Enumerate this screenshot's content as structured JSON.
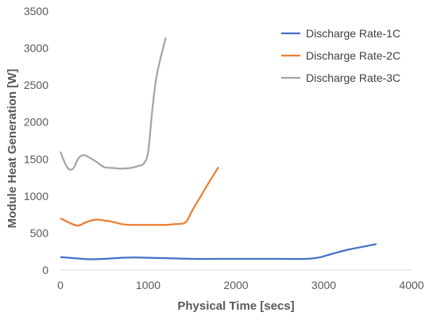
{
  "chart_data": {
    "type": "line",
    "xlabel": "Physical Time [secs]",
    "ylabel": "Module Heat Generation [W]",
    "xlim": [
      0,
      4000
    ],
    "ylim": [
      0,
      3500
    ],
    "x_ticks": [
      0,
      1000,
      2000,
      3000,
      4000
    ],
    "y_ticks": [
      0,
      500,
      1000,
      1500,
      2000,
      2500,
      3000,
      3500
    ],
    "grid": false,
    "legend_position": "top-right",
    "series": [
      {
        "name": "Discharge Rate-1C",
        "color": "#4472C4",
        "x": [
          0,
          150,
          350,
          500,
          700,
          850,
          1000,
          1200,
          1500,
          2000,
          2500,
          2800,
          2950,
          3100,
          3300,
          3600
        ],
        "y": [
          175,
          160,
          145,
          150,
          165,
          170,
          165,
          160,
          150,
          150,
          150,
          150,
          170,
          220,
          280,
          350
        ]
      },
      {
        "name": "Discharge Rate-2C",
        "color": "#ED7D31",
        "x": [
          0,
          100,
          200,
          300,
          400,
          500,
          600,
          700,
          800,
          1000,
          1200,
          1300,
          1400,
          1450,
          1500,
          1600,
          1700,
          1800
        ],
        "y": [
          700,
          640,
          600,
          650,
          680,
          670,
          650,
          620,
          610,
          610,
          610,
          620,
          630,
          680,
          800,
          1000,
          1200,
          1390
        ]
      },
      {
        "name": "Discharge Rate-3C",
        "color": "#A5A5A5",
        "x": [
          0,
          50,
          100,
          150,
          200,
          250,
          300,
          400,
          500,
          600,
          700,
          800,
          900,
          950,
          1000,
          1050,
          1100,
          1200
        ],
        "y": [
          1600,
          1450,
          1360,
          1380,
          1500,
          1550,
          1540,
          1470,
          1390,
          1380,
          1370,
          1380,
          1410,
          1440,
          1600,
          2200,
          2650,
          3140
        ]
      }
    ]
  }
}
